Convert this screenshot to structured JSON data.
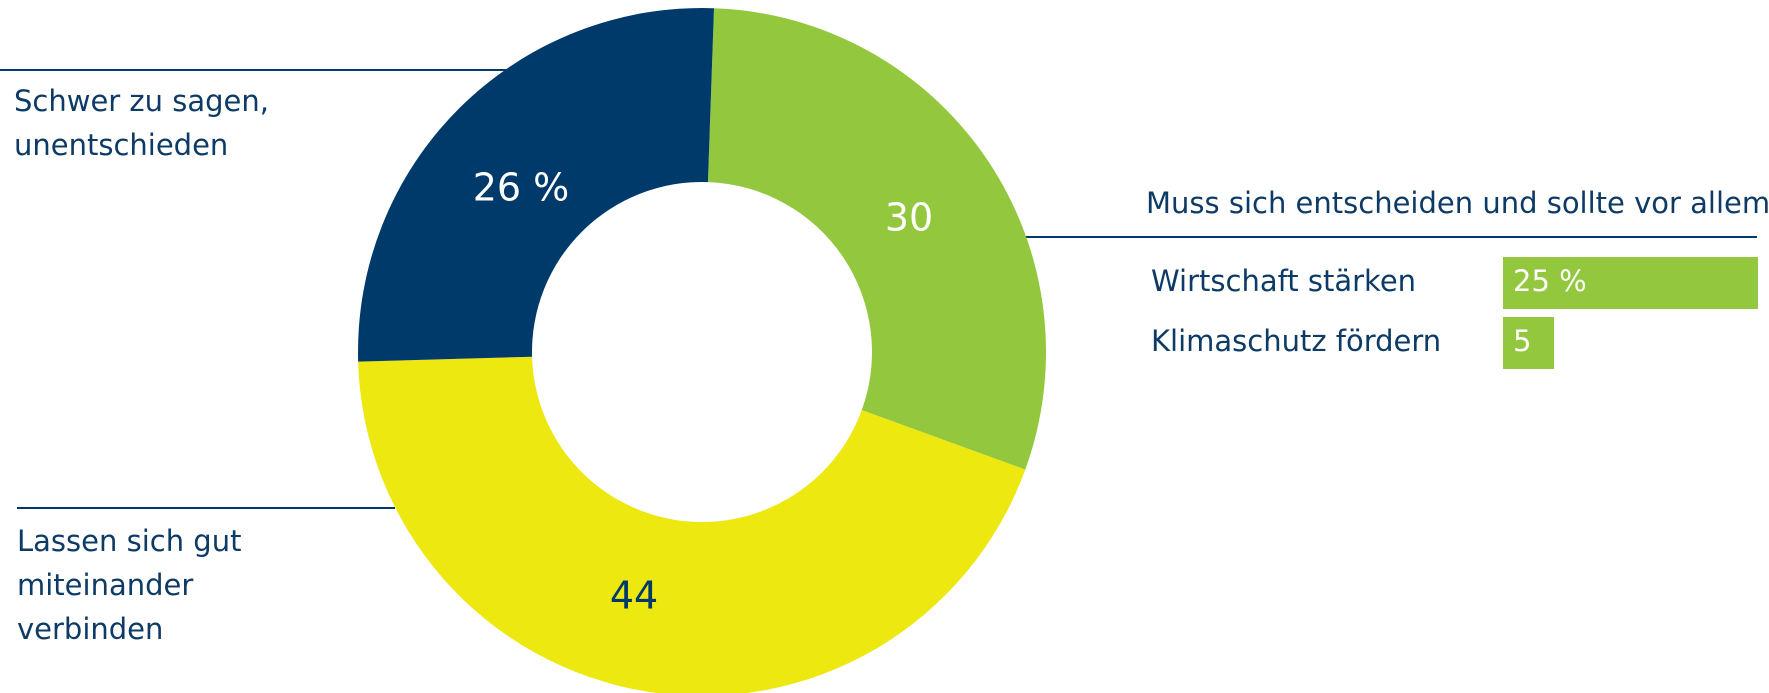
{
  "chart_data": [
    {
      "type": "pie",
      "categories": [
        "Muss sich entscheiden und sollte vor allem",
        "Lassen sich gut miteinander verbinden",
        "Schwer zu sagen, unentschieden"
      ],
      "values": [
        30,
        44,
        26
      ],
      "value_labels": [
        "30",
        "44",
        "26 %"
      ],
      "colors": [
        "#93c83e",
        "#ece810",
        "#003a6b"
      ],
      "label_colors": [
        "#ffffff",
        "#003a6b",
        "#ffffff"
      ],
      "hole": true
    },
    {
      "type": "barh",
      "categories": [
        "Wirtschaft stärken",
        "Klimaschutz fördern"
      ],
      "values": [
        25,
        5
      ],
      "value_labels": [
        "25 %",
        "5"
      ],
      "color": "#93c83e"
    }
  ]
}
